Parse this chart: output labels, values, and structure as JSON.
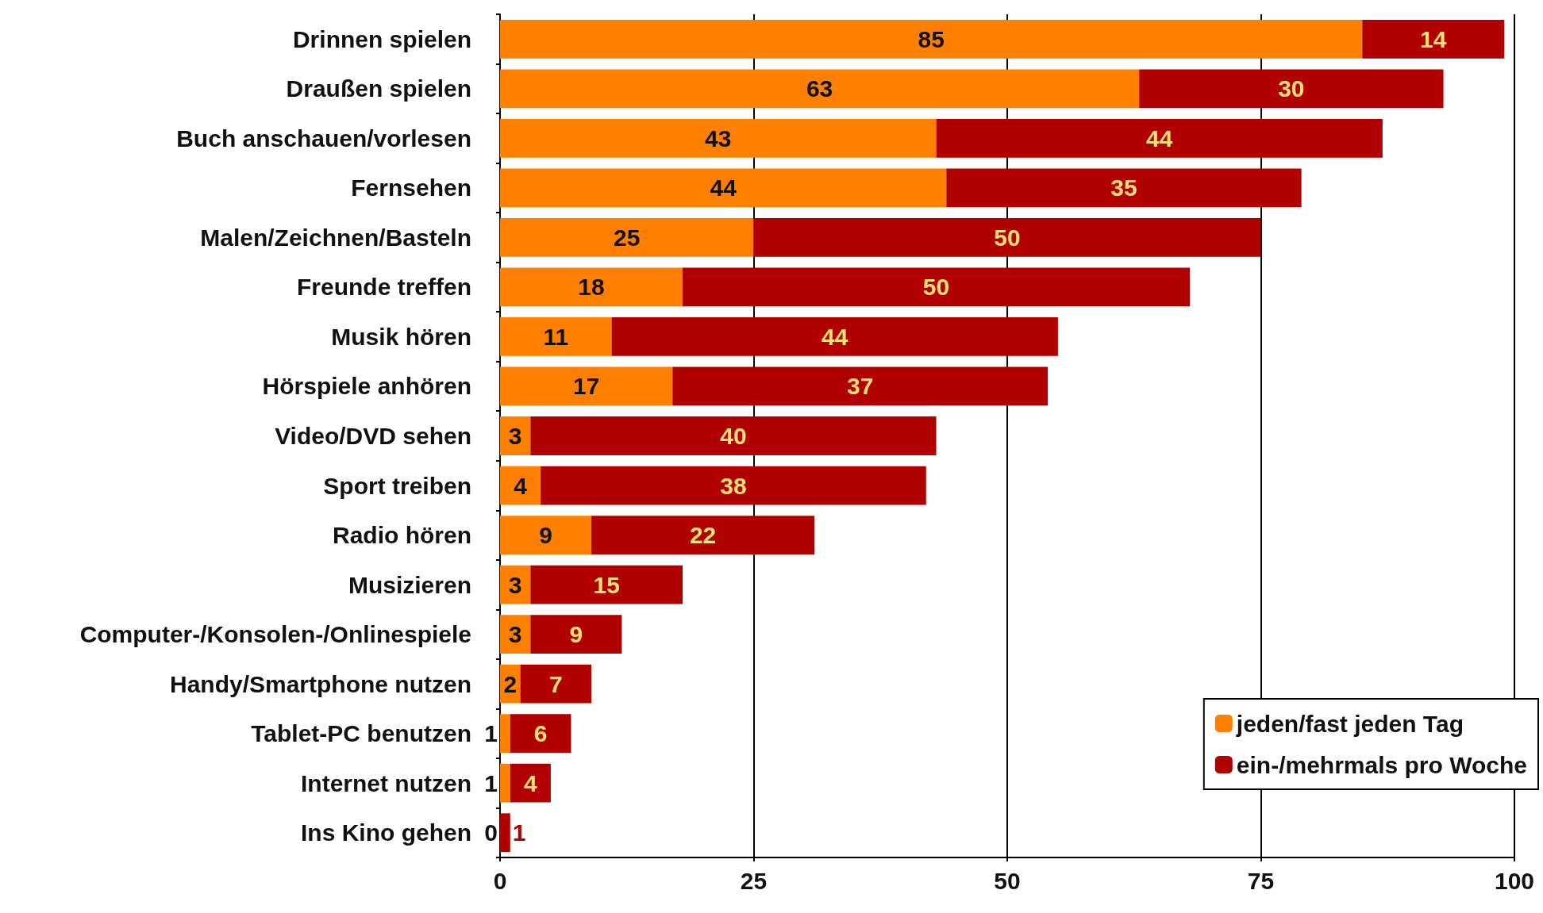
{
  "chart_data": {
    "type": "bar",
    "orientation": "horizontal",
    "stacked": true,
    "data_labels": true,
    "grid": "x",
    "legend": "bottom right",
    "categories": [
      "Drinnen spielen",
      "Draußen spielen",
      "Buch anschauen/vorlesen",
      "Fernsehen",
      "Malen/Zeichnen/Basteln",
      "Freunde treffen",
      "Musik hören",
      "Hörspiele anhören",
      "Video/DVD sehen",
      "Sport treiben",
      "Radio hören",
      "Musizieren",
      "Computer-/Konsolen-/Onlinespiele",
      "Handy/Smartphone nutzen",
      "Tablet-PC benutzen",
      "Internet nutzen",
      "Ins Kino gehen"
    ],
    "series": [
      {
        "name": "jeden/fast jeden Tag",
        "color": "#ff7f00",
        "values": [
          85,
          63,
          43,
          44,
          25,
          18,
          11,
          17,
          3,
          4,
          9,
          3,
          3,
          2,
          1,
          1,
          0
        ]
      },
      {
        "name": "ein-/mehrmals pro Woche",
        "color": "#b00000",
        "values": [
          14,
          30,
          44,
          35,
          50,
          50,
          44,
          37,
          40,
          38,
          22,
          15,
          9,
          7,
          6,
          4,
          1
        ]
      }
    ],
    "xlim": [
      0,
      100
    ],
    "xticks": [
      0,
      25,
      50,
      75,
      100
    ]
  }
}
